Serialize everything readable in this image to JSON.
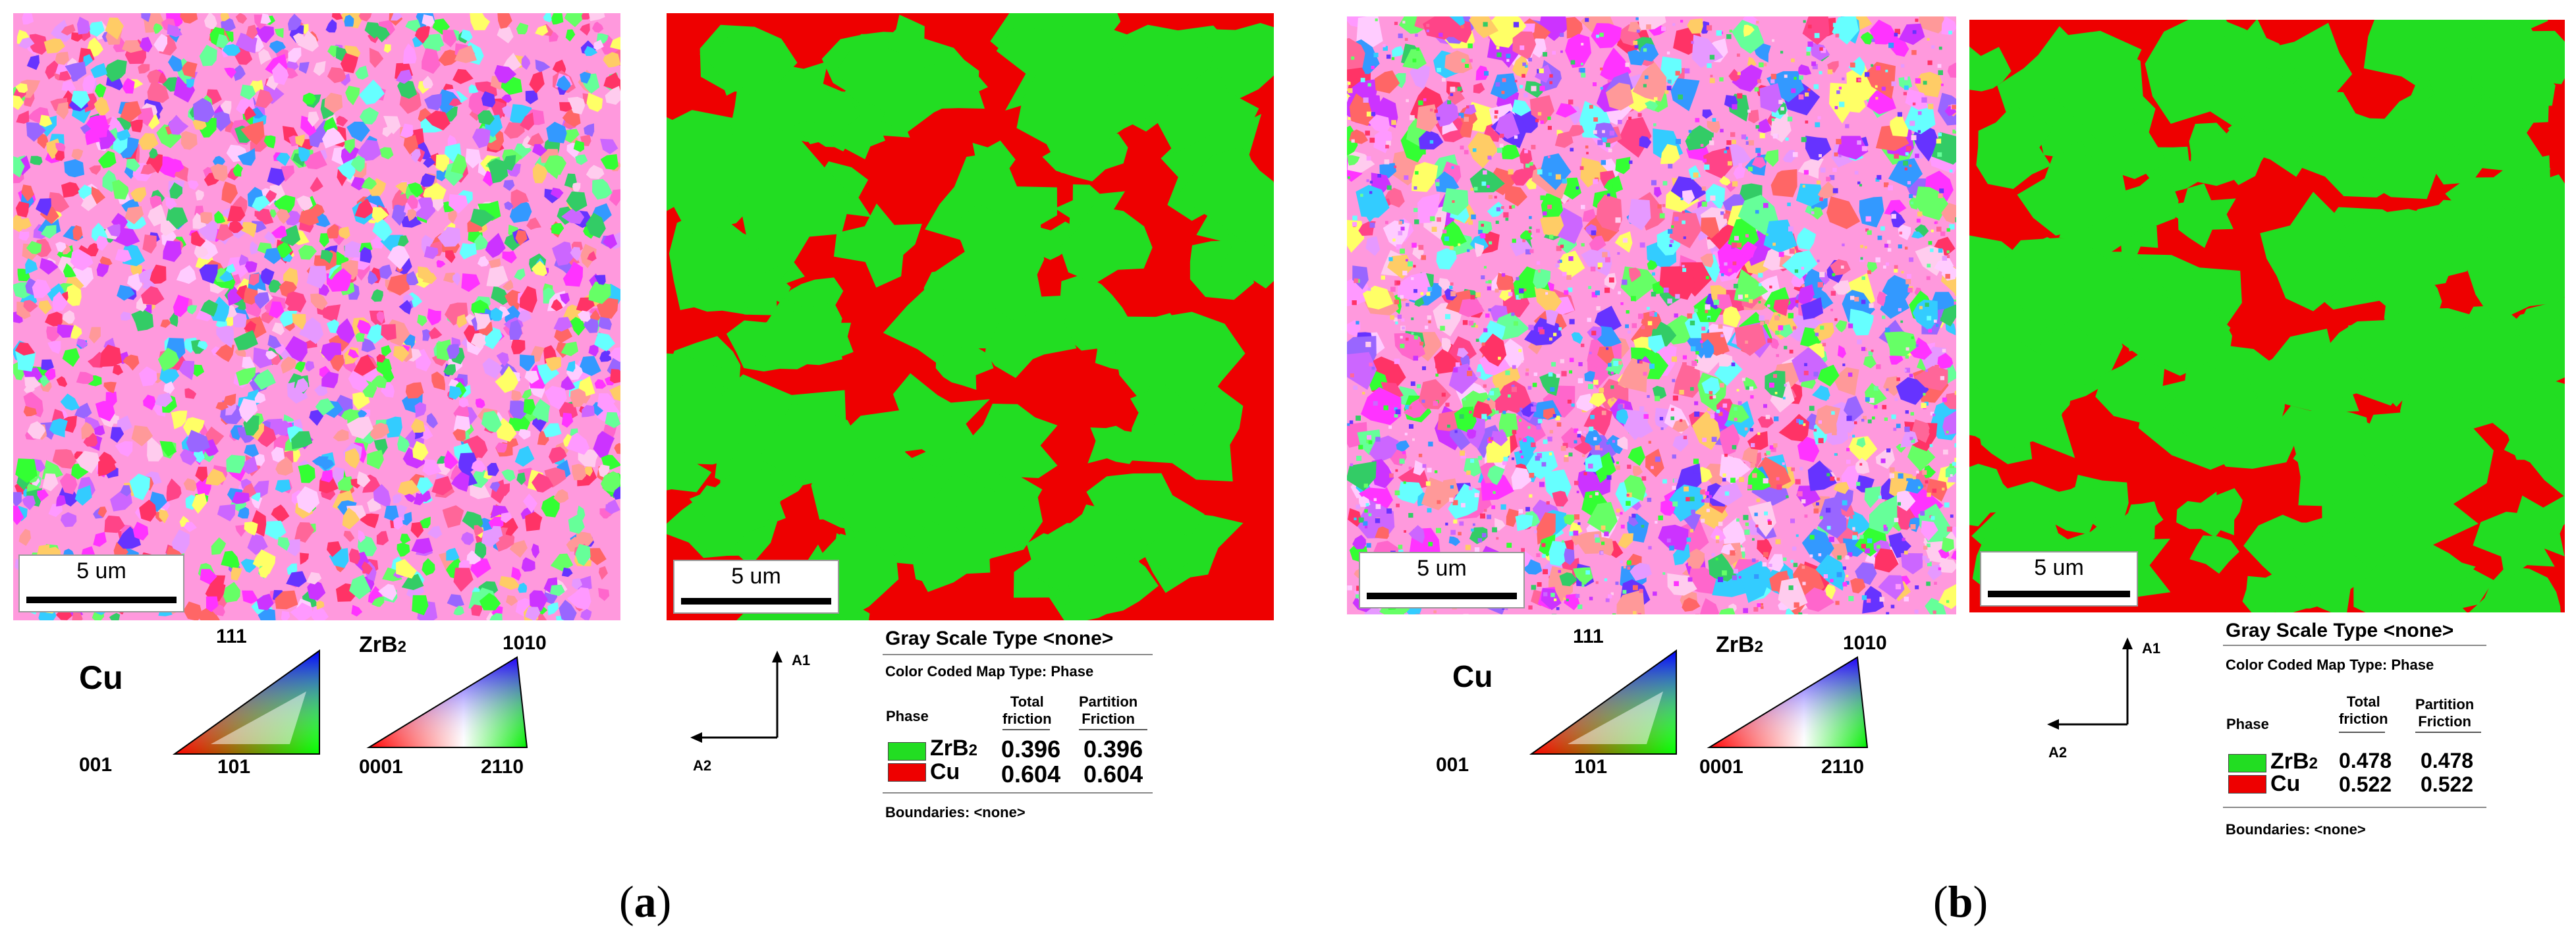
{
  "panels": [
    {
      "id": "a",
      "scalebar_ipf": "5 um",
      "scalebar_phase": "5 um",
      "ipf_cu": {
        "name": "Cu",
        "top": "111",
        "left": "001",
        "right": "101"
      },
      "ipf_zrb2": {
        "name_main": "ZrB",
        "name_sub": "2",
        "top": "1010",
        "left": "0001",
        "right": "2110"
      },
      "axes": {
        "a1": "A1",
        "a2": "A2"
      },
      "legend": {
        "gray_scale": "Gray Scale Type <none>",
        "color_coded": "Color Coded Map Type: Phase",
        "phase_header": "Phase",
        "total_header_1": "Total",
        "total_header_2": "friction",
        "partition_header_1": "Partition",
        "partition_header_2": "Friction",
        "rows": [
          {
            "phase": "ZrB",
            "phase_sub": "2",
            "color": "#22dd22",
            "total": "0.396",
            "partition": "0.396"
          },
          {
            "phase": "Cu",
            "phase_sub": "",
            "color": "#ee0000",
            "total": "0.604",
            "partition": "0.604"
          }
        ],
        "boundaries": "Boundaries: <none>"
      },
      "caption_letter": "a"
    },
    {
      "id": "b",
      "scalebar_ipf": "5 um",
      "scalebar_phase": "5 um",
      "ipf_cu": {
        "name": "Cu",
        "top": "111",
        "left": "001",
        "right": "101"
      },
      "ipf_zrb2": {
        "name_main": "ZrB",
        "name_sub": "2",
        "top": "1010",
        "left": "0001",
        "right": "2110"
      },
      "axes": {
        "a1": "A1",
        "a2": "A2"
      },
      "legend": {
        "gray_scale": "Gray Scale Type <none>",
        "color_coded": "Color Coded Map Type: Phase",
        "phase_header": "Phase",
        "total_header_1": "Total",
        "total_header_2": "friction",
        "partition_header_1": "Partition",
        "partition_header_2": "Friction",
        "rows": [
          {
            "phase": "ZrB",
            "phase_sub": "2",
            "color": "#22dd22",
            "total": "0.478",
            "partition": "0.478"
          },
          {
            "phase": "Cu",
            "phase_sub": "",
            "color": "#ee0000",
            "total": "0.522",
            "partition": "0.522"
          }
        ],
        "boundaries": "Boundaries: <none>"
      },
      "caption_letter": "b"
    }
  ],
  "colors": {
    "phase_green": "#22dd22",
    "phase_red": "#ee0000"
  }
}
